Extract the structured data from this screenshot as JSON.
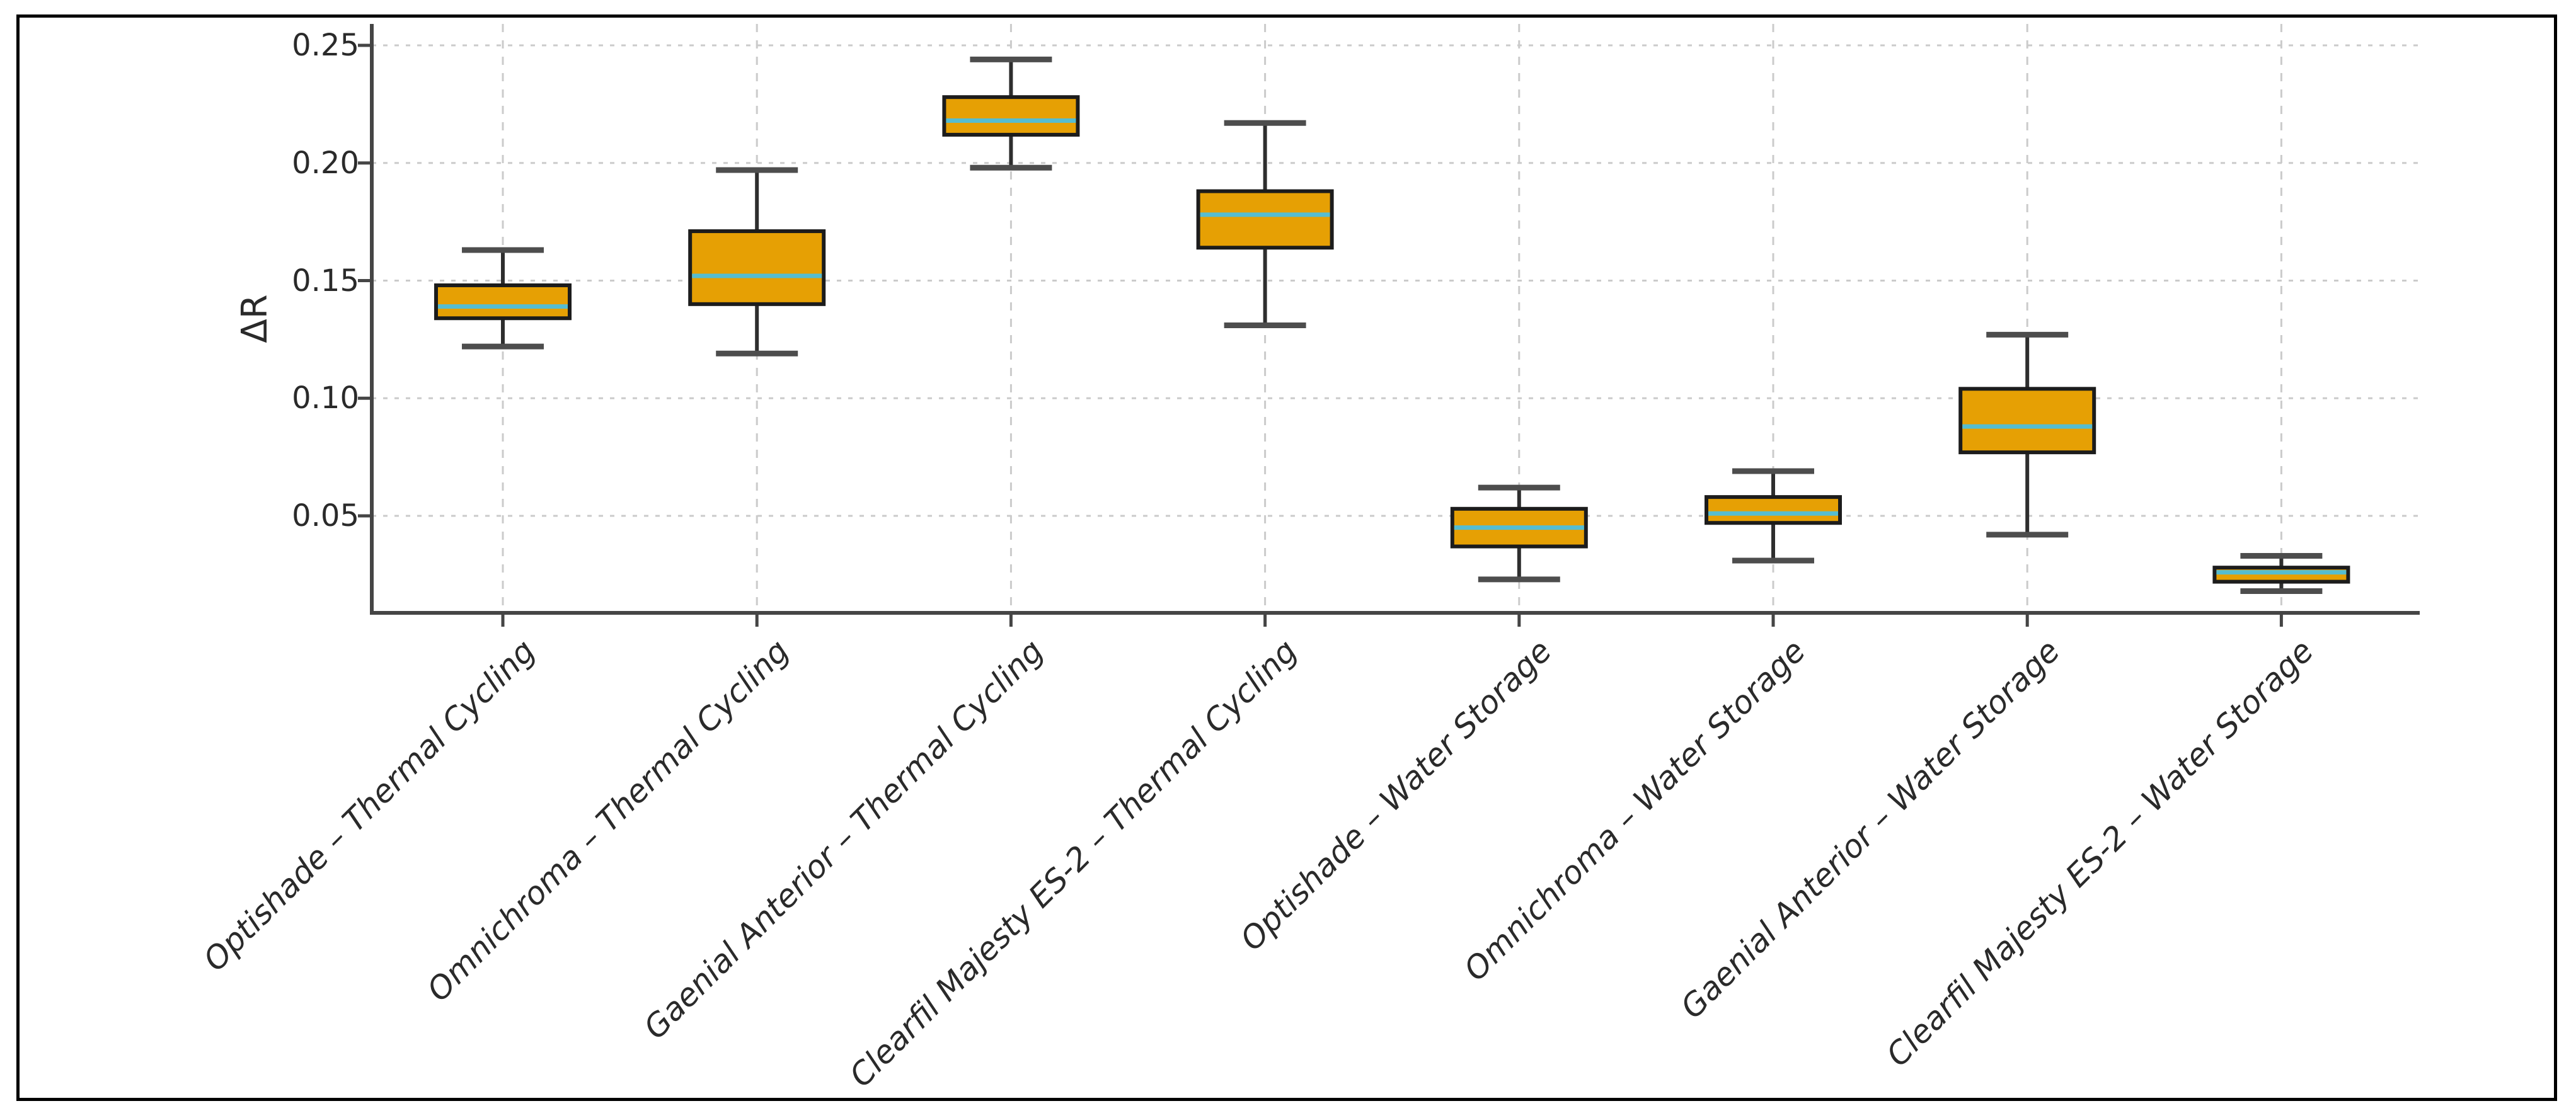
{
  "figure": {
    "background_color": "#ffffff",
    "border_color": "#000000"
  },
  "chart_data": {
    "type": "boxplot",
    "title": "",
    "xlabel": "",
    "ylabel": "ΔR",
    "ylim": [
      0.009,
      0.259
    ],
    "yticks": [
      "0.05",
      "0.10",
      "0.15",
      "0.20",
      "0.25"
    ],
    "ytick_values": [
      0.05,
      0.1,
      0.15,
      0.2,
      0.25
    ],
    "grid": {
      "horizontal": true,
      "vertical": true,
      "style": "dashed",
      "color": "#cbcbcb"
    },
    "legend": "none",
    "categories": [
      "Optishade – Thermal Cycling",
      "Omnichroma – Thermal Cycling",
      "Gaenial Anterior – Thermal Cycling",
      "Clearfil Majesty ES-2 – Thermal Cycling",
      "Optishade – Water Storage",
      "Omnichroma – Water Storage",
      "Gaenial Anterior – Water Storage",
      "Clearfil Majesty ES-2 – Water Storage"
    ],
    "series": [
      {
        "name": "Optishade – Thermal Cycling",
        "whisker_low": 0.122,
        "q1": 0.134,
        "median": 0.139,
        "q3": 0.148,
        "whisker_high": 0.163
      },
      {
        "name": "Omnichroma – Thermal Cycling",
        "whisker_low": 0.119,
        "q1": 0.14,
        "median": 0.152,
        "q3": 0.171,
        "whisker_high": 0.197
      },
      {
        "name": "Gaenial Anterior – Thermal Cycling",
        "whisker_low": 0.198,
        "q1": 0.212,
        "median": 0.218,
        "q3": 0.228,
        "whisker_high": 0.244
      },
      {
        "name": "Clearfil Majesty ES-2 – Thermal Cycling",
        "whisker_low": 0.131,
        "q1": 0.164,
        "median": 0.178,
        "q3": 0.188,
        "whisker_high": 0.217
      },
      {
        "name": "Optishade – Water Storage",
        "whisker_low": 0.023,
        "q1": 0.037,
        "median": 0.045,
        "q3": 0.053,
        "whisker_high": 0.062
      },
      {
        "name": "Omnichroma – Water Storage",
        "whisker_low": 0.031,
        "q1": 0.047,
        "median": 0.051,
        "q3": 0.058,
        "whisker_high": 0.069
      },
      {
        "name": "Gaenial Anterior – Water Storage",
        "whisker_low": 0.042,
        "q1": 0.077,
        "median": 0.088,
        "q3": 0.104,
        "whisker_high": 0.127
      },
      {
        "name": "Clearfil Majesty ES-2 – Water Storage",
        "whisker_low": 0.018,
        "q1": 0.022,
        "median": 0.026,
        "q3": 0.028,
        "whisker_high": 0.033
      }
    ],
    "colors": {
      "box_fill": "#E6A004",
      "box_edge": "#1c1c1c",
      "median": "#56BDD0",
      "whisker": "#2e2e2e",
      "cap": "#4d4d4d",
      "spine": "#454545",
      "tick": "#454545",
      "grid": "#cbcbcb",
      "text": "#2a2a2a"
    }
  }
}
